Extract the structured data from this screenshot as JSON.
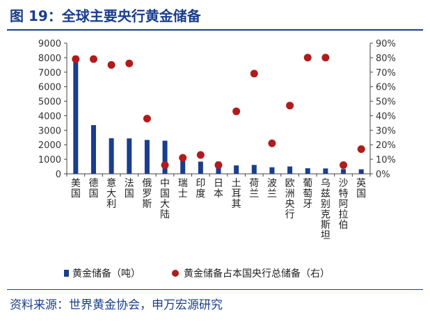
{
  "header": {
    "title": "图 19：全球主要央行黄金储备"
  },
  "footer": {
    "source": "资料来源：世界黄金协会，申万宏源研究"
  },
  "chart_data": {
    "type": "bar",
    "title": "图 19：全球主要央行黄金储备",
    "categories": [
      "美国",
      "德国",
      "意大利",
      "法国",
      "俄罗斯",
      "中国大陆",
      "瑞士",
      "印度",
      "日本",
      "土耳其",
      "荷兰",
      "波兰",
      "欧洲央行",
      "葡萄牙",
      "乌兹别克斯坦",
      "沙特阿拉伯",
      "英国"
    ],
    "y_left": {
      "min": 0,
      "max": 9000,
      "step": 1000,
      "ticks": [
        "0",
        "1000",
        "2000",
        "3000",
        "4000",
        "5000",
        "6000",
        "7000",
        "8000",
        "9000"
      ]
    },
    "y_right": {
      "min": 0,
      "max": 90,
      "step": 10,
      "ticks": [
        "0%",
        "10%",
        "20%",
        "30%",
        "40%",
        "50%",
        "60%",
        "70%",
        "80%",
        "90%"
      ]
    },
    "series": [
      {
        "name": "黄金储备（吨）",
        "type": "bar",
        "axis": "left",
        "color": "#1a3e8c",
        "values": [
          8133,
          3352,
          2452,
          2437,
          2333,
          2280,
          1040,
          840,
          846,
          580,
          612,
          450,
          506,
          383,
          370,
          323,
          310
        ]
      },
      {
        "name": "黄金储备占本国央行总储备（右）",
        "type": "scatter",
        "axis": "right",
        "color": "#b01c1c",
        "values": [
          79,
          79,
          75,
          76,
          38,
          6,
          11,
          13,
          6,
          43,
          69,
          21,
          47,
          80,
          80,
          6,
          17
        ]
      }
    ],
    "legend": {
      "position": "bottom"
    },
    "grid": false
  }
}
